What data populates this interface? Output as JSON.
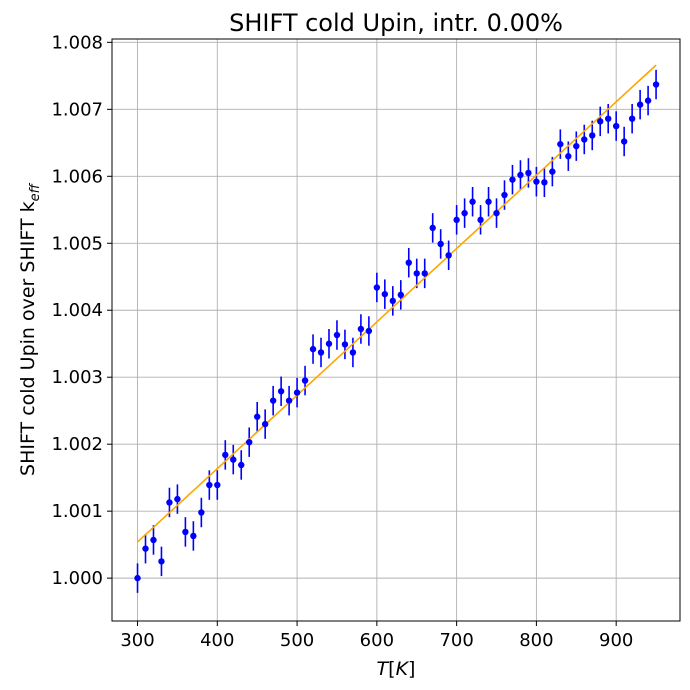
{
  "chart_data": {
    "type": "scatter",
    "title": "SHIFT cold Upin, intr. 0.00%",
    "xlabel": "T[K]",
    "ylabel_main": "SHIFT cold Upin over SHIFT k",
    "ylabel_sub": "eff",
    "xlim": [
      268,
      980
    ],
    "ylim": [
      0.99936,
      1.00805
    ],
    "xticks": [
      300,
      400,
      500,
      600,
      700,
      800,
      900
    ],
    "yticks": [
      1.0,
      1.001,
      1.002,
      1.003,
      1.004,
      1.005,
      1.006,
      1.007,
      1.008
    ],
    "ytick_labels": [
      "1.000",
      "1.001",
      "1.002",
      "1.003",
      "1.004",
      "1.005",
      "1.006",
      "1.007",
      "1.008"
    ],
    "grid": true,
    "series": [
      {
        "kind": "errorbar",
        "color": "#0000ff",
        "marker": "circle",
        "error": 0.00022,
        "x": [
          300,
          310,
          320,
          330,
          340,
          350,
          360,
          370,
          380,
          390,
          400,
          410,
          420,
          430,
          440,
          450,
          460,
          470,
          480,
          490,
          500,
          510,
          520,
          530,
          540,
          550,
          560,
          570,
          580,
          590,
          600,
          610,
          620,
          630,
          640,
          650,
          660,
          670,
          680,
          690,
          700,
          710,
          720,
          730,
          740,
          750,
          760,
          770,
          780,
          790,
          800,
          810,
          820,
          830,
          840,
          850,
          860,
          870,
          880,
          890,
          900,
          910,
          920,
          930,
          940,
          950
        ],
        "y": [
          1.0,
          1.00044,
          1.00057,
          1.00025,
          1.00113,
          1.00118,
          1.00069,
          1.00063,
          1.00098,
          1.00139,
          1.00139,
          1.00184,
          1.00177,
          1.00169,
          1.00203,
          1.00241,
          1.0023,
          1.00265,
          1.00279,
          1.00265,
          1.00277,
          1.00295,
          1.00342,
          1.00337,
          1.0035,
          1.00363,
          1.00349,
          1.00337,
          1.00372,
          1.00369,
          1.00434,
          1.00424,
          1.00414,
          1.00423,
          1.00471,
          1.00455,
          1.00455,
          1.00523,
          1.00499,
          1.00482,
          1.00535,
          1.00545,
          1.00562,
          1.00535,
          1.00562,
          1.00545,
          1.00572,
          1.00595,
          1.00602,
          1.00605,
          1.00592,
          1.00591,
          1.00607,
          1.00648,
          1.0063,
          1.00645,
          1.00655,
          1.00661,
          1.00682,
          1.00686,
          1.00675,
          1.00652,
          1.00686,
          1.00707,
          1.00713,
          1.00737
        ]
      },
      {
        "kind": "line",
        "color": "#ffa500",
        "x": [
          300,
          950
        ],
        "y": [
          1.00054,
          1.00766
        ]
      }
    ]
  }
}
